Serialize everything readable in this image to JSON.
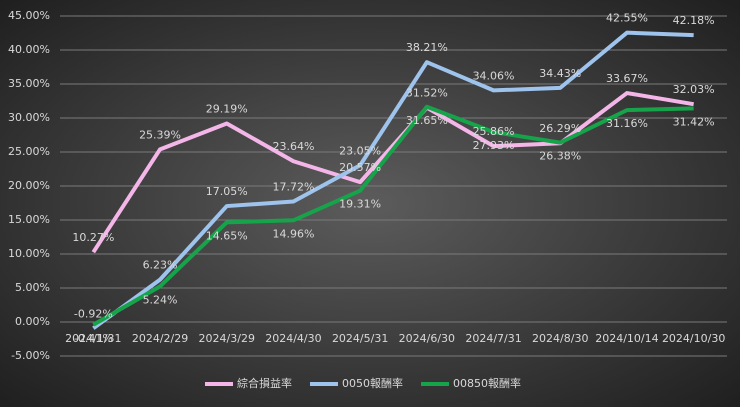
{
  "chart_data": {
    "type": "line",
    "categories": [
      "2024/1/31",
      "2024/2/29",
      "2024/3/29",
      "2024/4/30",
      "2024/5/31",
      "2024/6/30",
      "2024/7/31",
      "2024/8/30",
      "2024/10/14",
      "2024/10/30"
    ],
    "series": [
      {
        "name": "綜合損益率",
        "color": "#f4b6e8",
        "values": [
          10.27,
          25.39,
          29.19,
          23.64,
          20.57,
          31.52,
          25.86,
          26.29,
          33.67,
          32.03
        ],
        "value_labels": [
          "10.27%",
          "25.39%",
          "29.19%",
          "23.64%",
          "20.57%",
          "31.52%",
          "25.86%",
          "26.29%",
          "33.67%",
          "32.03%"
        ]
      },
      {
        "name": "0050報酬率",
        "color": "#9ec3ec",
        "values": [
          -0.92,
          6.23,
          17.05,
          17.72,
          23.05,
          38.21,
          34.06,
          34.43,
          42.55,
          42.18
        ],
        "value_labels": [
          "-0.92%",
          "6.23%",
          "17.05%",
          "17.72%",
          "23.05%",
          "38.21%",
          "34.06%",
          "34.43%",
          "42.55%",
          "42.18%"
        ]
      },
      {
        "name": "00850報酬率",
        "color": "#16a34a",
        "values": [
          -0.41,
          5.24,
          14.65,
          14.96,
          19.31,
          31.65,
          27.93,
          26.38,
          31.16,
          31.42
        ],
        "value_labels": [
          "-0.41%",
          "5.24%",
          "14.65%",
          "14.96%",
          "19.31%",
          "31.65%",
          "27.93%",
          "26.38%",
          "31.16%",
          "31.42%"
        ]
      }
    ],
    "ylim": [
      -5,
      45
    ],
    "yticks": [
      {
        "value": -5,
        "label": "-5.00%"
      },
      {
        "value": 0,
        "label": "0.00%"
      },
      {
        "value": 5,
        "label": "5.00%"
      },
      {
        "value": 10,
        "label": "10.00%"
      },
      {
        "value": 15,
        "label": "15.00%"
      },
      {
        "value": 20,
        "label": "20.00%"
      },
      {
        "value": 25,
        "label": "25.00%"
      },
      {
        "value": 30,
        "label": "30.00%"
      },
      {
        "value": 35,
        "label": "35.00%"
      },
      {
        "value": 40,
        "label": "40.00%"
      },
      {
        "value": 45,
        "label": "45.00%"
      }
    ],
    "grid": true,
    "legend": "bottom"
  }
}
